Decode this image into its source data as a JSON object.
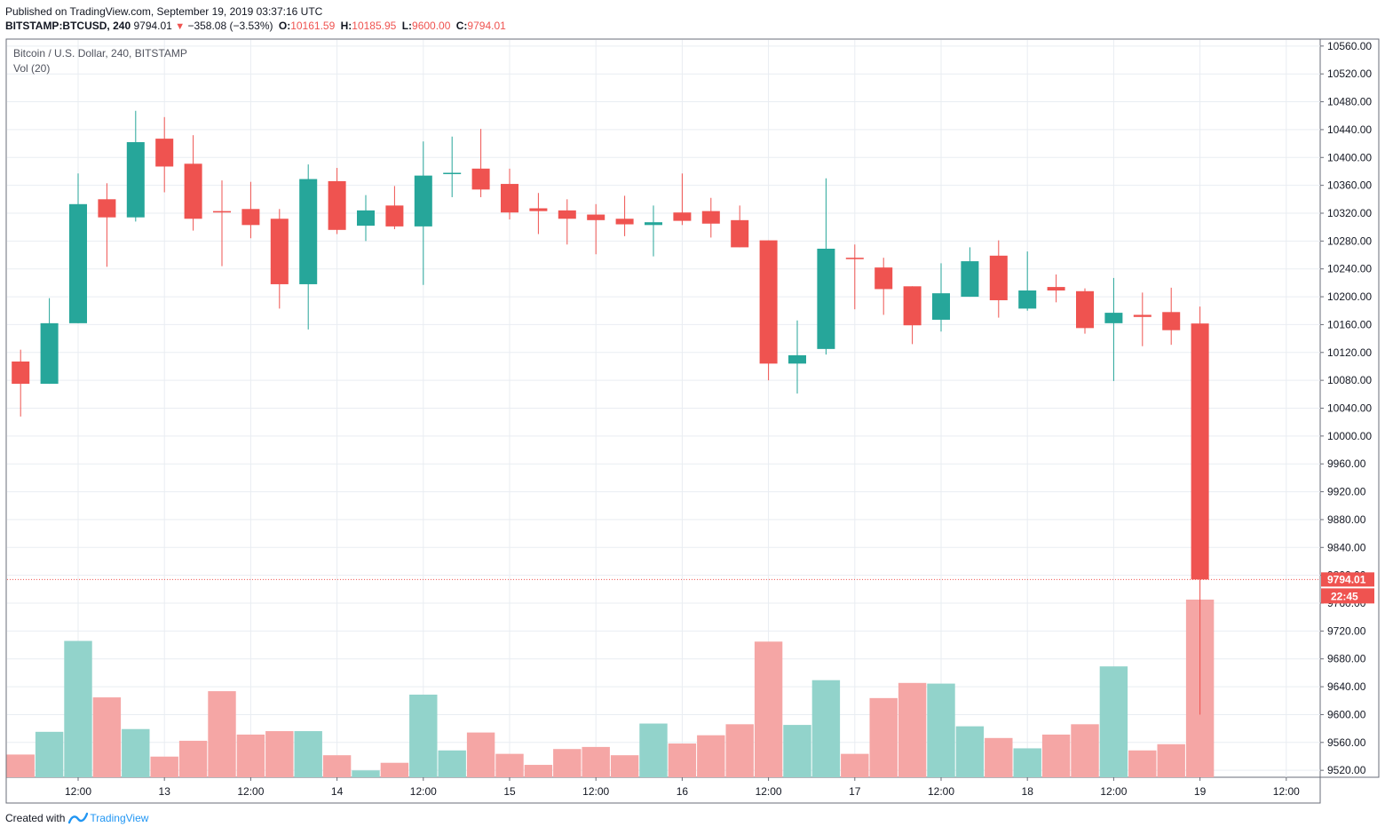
{
  "header": {
    "published": "Published on TradingView.com, September 19, 2019 03:37:16 UTC",
    "symbol": "BITSTAMP:BTCUSD, 240",
    "last": "9794.01",
    "change": "−358.08 (−3.53%)",
    "o_label": "O:",
    "o_value": "10161.59",
    "h_label": "H:",
    "h_value": "10185.95",
    "l_label": "L:",
    "l_value": "9600.00",
    "c_label": "C:",
    "c_value": "9794.01"
  },
  "pane": {
    "title": "Bitcoin / U.S. Dollar, 240, BITSTAMP",
    "vol_label": "Vol (20)"
  },
  "footer": {
    "created_with": "Created with",
    "brand": "TradingView"
  },
  "colors": {
    "up": "#26a69a",
    "down": "#ef5350",
    "vol_up": "#92d3cb",
    "vol_down": "#f5a6a5",
    "grid": "#e9edf2",
    "axis_text": "#131722"
  },
  "chart_data": {
    "type": "candlestick",
    "title": "Bitcoin / U.S. Dollar, 240, BITSTAMP",
    "ylim": [
      9510,
      10570
    ],
    "y_ticks": [
      10560,
      10520,
      10480,
      10440,
      10400,
      10360,
      10320,
      10280,
      10240,
      10200,
      10160,
      10120,
      10080,
      10040,
      10000,
      9960,
      9920,
      9880,
      9840,
      9800,
      9760,
      9720,
      9680,
      9640,
      9600,
      9560,
      9520
    ],
    "y_tick_labels": [
      "10560.00",
      "10520.00",
      "10480.00",
      "10440.00",
      "10400.00",
      "10360.00",
      "10320.00",
      "10280.00",
      "10240.00",
      "10200.00",
      "10160.00",
      "10120.00",
      "10080.00",
      "10040.00",
      "10000.00",
      "9960.00",
      "9920.00",
      "9880.00",
      "9840.00",
      "9800.00",
      "9760.00",
      "9720.00",
      "9680.00",
      "9640.00",
      "9600.00",
      "9560.00",
      "9520.00"
    ],
    "x_labels": [
      {
        "index": 2.5,
        "label": "12:00"
      },
      {
        "index": 5.5,
        "label": "13"
      },
      {
        "index": 8.5,
        "label": "12:00"
      },
      {
        "index": 11.5,
        "label": "14"
      },
      {
        "index": 14.5,
        "label": "12:00"
      },
      {
        "index": 17.5,
        "label": "15"
      },
      {
        "index": 20.5,
        "label": "12:00"
      },
      {
        "index": 23.5,
        "label": "16"
      },
      {
        "index": 26.5,
        "label": "12:00"
      },
      {
        "index": 29.5,
        "label": "17"
      },
      {
        "index": 32.5,
        "label": "12:00"
      },
      {
        "index": 35.5,
        "label": "18"
      },
      {
        "index": 38.5,
        "label": "12:00"
      },
      {
        "index": 41.5,
        "label": "19"
      },
      {
        "index": 44.5,
        "label": "12:00"
      }
    ],
    "candles": [
      {
        "o": 10107,
        "h": 10124,
        "l": 10028,
        "c": 10075
      },
      {
        "o": 10075,
        "h": 10198,
        "l": 10075,
        "c": 10162
      },
      {
        "o": 10162,
        "h": 10377,
        "l": 10162,
        "c": 10333
      },
      {
        "o": 10340,
        "h": 10363,
        "l": 10243,
        "c": 10314
      },
      {
        "o": 10314,
        "h": 10467,
        "l": 10308,
        "c": 10422
      },
      {
        "o": 10427,
        "h": 10458,
        "l": 10350,
        "c": 10387
      },
      {
        "o": 10391,
        "h": 10432,
        "l": 10295,
        "c": 10312
      },
      {
        "o": 10323,
        "h": 10367,
        "l": 10244,
        "c": 10321
      },
      {
        "o": 10326,
        "h": 10365,
        "l": 10284,
        "c": 10303
      },
      {
        "o": 10312,
        "h": 10326,
        "l": 10183,
        "c": 10218
      },
      {
        "o": 10218,
        "h": 10390,
        "l": 10153,
        "c": 10369
      },
      {
        "o": 10366,
        "h": 10385,
        "l": 10290,
        "c": 10296
      },
      {
        "o": 10302,
        "h": 10346,
        "l": 10280,
        "c": 10324
      },
      {
        "o": 10331,
        "h": 10359,
        "l": 10297,
        "c": 10301
      },
      {
        "o": 10301,
        "h": 10423,
        "l": 10217,
        "c": 10374
      },
      {
        "o": 10378,
        "h": 10430,
        "l": 10343,
        "c": 10378
      },
      {
        "o": 10384,
        "h": 10441,
        "l": 10343,
        "c": 10354
      },
      {
        "o": 10362,
        "h": 10384,
        "l": 10311,
        "c": 10321
      },
      {
        "o": 10327,
        "h": 10349,
        "l": 10290,
        "c": 10323
      },
      {
        "o": 10324,
        "h": 10340,
        "l": 10275,
        "c": 10312
      },
      {
        "o": 10318,
        "h": 10333,
        "l": 10261,
        "c": 10310
      },
      {
        "o": 10312,
        "h": 10345,
        "l": 10287,
        "c": 10304
      },
      {
        "o": 10303,
        "h": 10331,
        "l": 10258,
        "c": 10307
      },
      {
        "o": 10321,
        "h": 10377,
        "l": 10303,
        "c": 10309
      },
      {
        "o": 10323,
        "h": 10342,
        "l": 10285,
        "c": 10305
      },
      {
        "o": 10310,
        "h": 10331,
        "l": 10271,
        "c": 10271
      },
      {
        "o": 10281,
        "h": 10281,
        "l": 10080,
        "c": 10104
      },
      {
        "o": 10104,
        "h": 10166,
        "l": 10061,
        "c": 10116
      },
      {
        "o": 10125,
        "h": 10370,
        "l": 10117,
        "c": 10269
      },
      {
        "o": 10256,
        "h": 10275,
        "l": 10182,
        "c": 10254
      },
      {
        "o": 10242,
        "h": 10256,
        "l": 10174,
        "c": 10211
      },
      {
        "o": 10215,
        "h": 10215,
        "l": 10132,
        "c": 10159
      },
      {
        "o": 10167,
        "h": 10248,
        "l": 10150,
        "c": 10205
      },
      {
        "o": 10200,
        "h": 10271,
        "l": 10200,
        "c": 10251
      },
      {
        "o": 10259,
        "h": 10281,
        "l": 10170,
        "c": 10195
      },
      {
        "o": 10183,
        "h": 10265,
        "l": 10180,
        "c": 10209
      },
      {
        "o": 10214,
        "h": 10232,
        "l": 10192,
        "c": 10209
      },
      {
        "o": 10208,
        "h": 10212,
        "l": 10147,
        "c": 10155
      },
      {
        "o": 10162,
        "h": 10227,
        "l": 10079,
        "c": 10177
      },
      {
        "o": 10174,
        "h": 10206,
        "l": 10129,
        "c": 10171
      },
      {
        "o": 10178,
        "h": 10213,
        "l": 10131,
        "c": 10152
      },
      {
        "o": 10161.59,
        "h": 10185.95,
        "l": 9600,
        "c": 9794.01
      }
    ],
    "volume": [
      3.3,
      6.6,
      19.8,
      11.6,
      7.0,
      3.0,
      5.3,
      12.5,
      6.2,
      6.7,
      6.7,
      3.2,
      1.0,
      2.1,
      12.0,
      3.9,
      6.5,
      3.4,
      1.8,
      4.1,
      4.4,
      3.2,
      7.8,
      4.9,
      6.1,
      7.7,
      19.7,
      7.6,
      14.1,
      3.4,
      11.5,
      13.7,
      13.6,
      7.4,
      5.7,
      4.2,
      6.2,
      7.7,
      16.1,
      3.9,
      4.8,
      25.8
    ],
    "last_price_label": "9794.01",
    "countdown_label": "22:45"
  }
}
